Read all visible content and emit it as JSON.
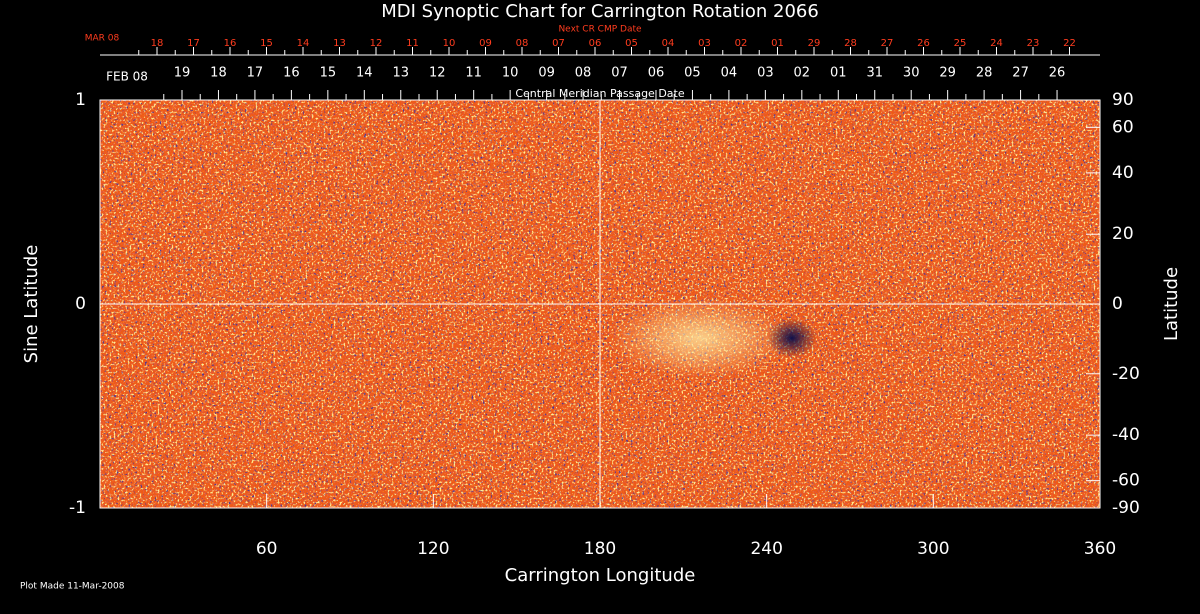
{
  "chart_data": {
    "type": "synoptic",
    "title": "MDI Synoptic Chart for Carrington Rotation 2066",
    "x_label": "Carrington Longitude",
    "y_label": "Sine Latitude",
    "y2_label": "Latitude",
    "xlim": [
      0,
      360
    ],
    "xticks": [
      60,
      120,
      180,
      240,
      300,
      360
    ],
    "ylim": [
      -1,
      1
    ],
    "yticks": [
      -1,
      0,
      1
    ],
    "y2lim": [
      -90,
      90
    ],
    "y2scale": "sine",
    "y2ticks": [
      90,
      60,
      40,
      20,
      0,
      -20,
      -40,
      -60,
      -90
    ],
    "reference_lines": {
      "x": 180,
      "y": 0
    },
    "next_cr_axis": {
      "label": "Next CR CMP Date",
      "month": "MAR 08",
      "color": "#ff3c1e",
      "dates": [
        "18",
        "17",
        "16",
        "15",
        "14",
        "13",
        "12",
        "11",
        "10",
        "09",
        "08",
        "07",
        "06",
        "05",
        "04",
        "03",
        "02",
        "01",
        "29",
        "28",
        "27",
        "26",
        "25",
        "24",
        "23",
        "22"
      ]
    },
    "cmp_axis": {
      "label": "Central Meridian Passage Date",
      "month": "FEB 08",
      "dates": [
        "19",
        "18",
        "17",
        "16",
        "15",
        "14",
        "13",
        "12",
        "11",
        "10",
        "09",
        "08",
        "07",
        "06",
        "05",
        "04",
        "03",
        "02",
        "01",
        "31",
        "30",
        "29",
        "28",
        "27",
        "26"
      ]
    },
    "footnote": "Plot Made 11-Mar-2008"
  }
}
